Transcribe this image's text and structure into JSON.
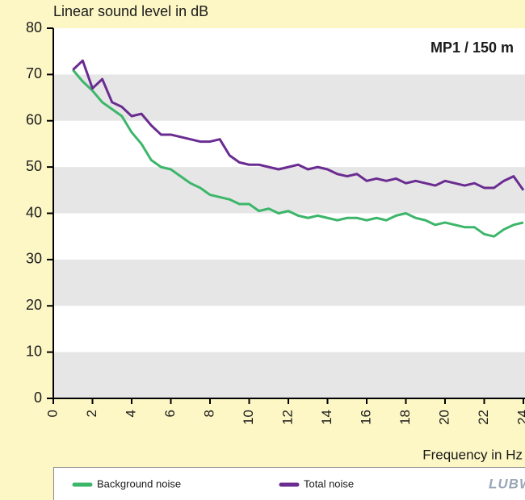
{
  "chart_data": {
    "type": "line",
    "title": "Linear sound level in dB",
    "annotation": "MP1 / 150 m",
    "x_label": "Frequency in Hz",
    "logo": "LUBW",
    "x": [
      1,
      1.5,
      2,
      2.5,
      3,
      3.5,
      4,
      4.5,
      5,
      5.5,
      6,
      6.5,
      7,
      7.5,
      8,
      8.5,
      9,
      9.5,
      10,
      10.5,
      11,
      11.5,
      12,
      12.5,
      13,
      13.5,
      14,
      14.5,
      15,
      15.5,
      16,
      16.5,
      17,
      17.5,
      18,
      18.5,
      19,
      19.5,
      20,
      20.5,
      21,
      21.5,
      22,
      22.5,
      23,
      23.5,
      24
    ],
    "series": [
      {
        "name": "Background noise",
        "color": "#3cb66a",
        "values": [
          71,
          68.5,
          66.5,
          64,
          62.5,
          61,
          57.5,
          55,
          51.5,
          50,
          49.5,
          48,
          46.5,
          45.5,
          44,
          43.5,
          43,
          42,
          42,
          40.5,
          41,
          40,
          40.5,
          39.5,
          39,
          39.5,
          39,
          38.5,
          39,
          39,
          38.5,
          39,
          38.5,
          39.5,
          40,
          39,
          38.5,
          37.5,
          38,
          37.5,
          37,
          37,
          35.5,
          35,
          36.5,
          37.5,
          38
        ]
      },
      {
        "name": "Total noise",
        "color": "#6a2c91",
        "values": [
          71,
          73,
          67,
          69,
          64,
          63,
          61,
          61.5,
          59,
          57,
          57,
          56.5,
          56,
          55.5,
          55.5,
          56,
          52.5,
          51,
          50.5,
          50.5,
          50,
          49.5,
          50,
          50.5,
          49.5,
          50,
          49.5,
          48.5,
          48,
          48.5,
          47,
          47.5,
          47,
          47.5,
          46.5,
          47,
          46.5,
          46,
          47,
          46.5,
          46,
          46.5,
          45.5,
          45.5,
          47,
          48,
          45
        ]
      }
    ],
    "xlim": [
      0,
      24
    ],
    "xticks": [
      0,
      2,
      4,
      6,
      8,
      10,
      12,
      14,
      16,
      18,
      20,
      22,
      24
    ],
    "ylim": [
      0,
      80
    ],
    "yticks": [
      0,
      10,
      20,
      30,
      40,
      50,
      60,
      70,
      80
    ],
    "bands": true
  }
}
